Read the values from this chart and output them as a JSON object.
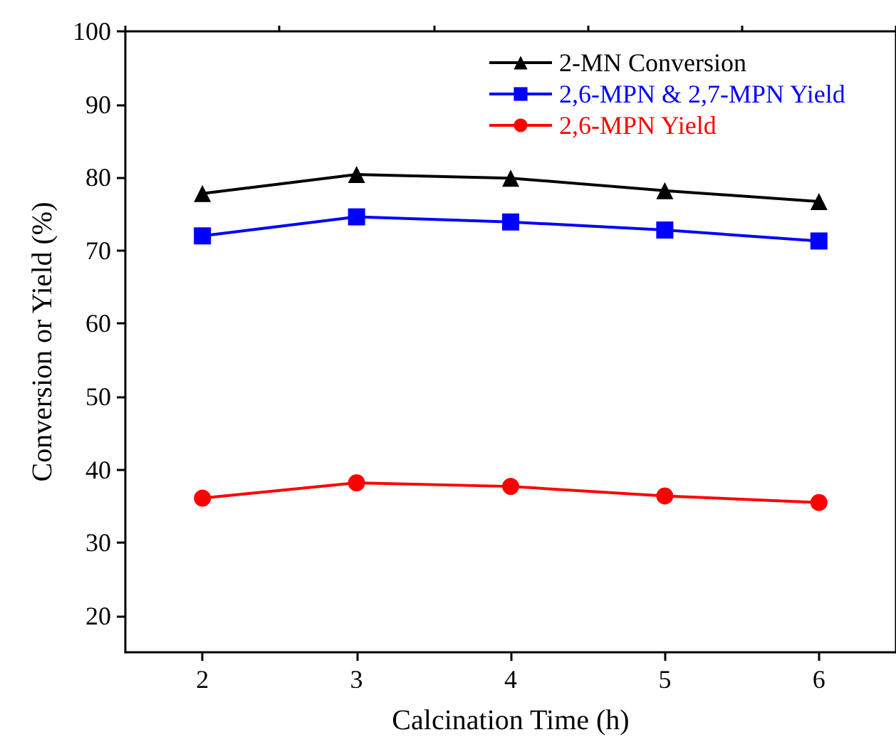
{
  "chart_data": {
    "type": "line",
    "xlabel": "Calcination Time (h)",
    "ylabel": "Conversion or Yield (%)",
    "x": [
      2,
      3,
      4,
      5,
      6
    ],
    "xlim": [
      1.5,
      6.5
    ],
    "xticks": [
      2,
      3,
      4,
      5,
      6
    ],
    "ylim": [
      15,
      100
    ],
    "yticks": [
      20,
      30,
      40,
      50,
      60,
      70,
      80,
      90,
      100
    ],
    "grid": false,
    "legend": "top right",
    "series": [
      {
        "name": "2-MN Conversion",
        "color": "#000000",
        "marker": "triangle",
        "values": [
          77.8,
          80.4,
          79.9,
          78.2,
          76.7
        ]
      },
      {
        "name": "2,6-MPN & 2,7-MPN Yield",
        "color": "#0000ff",
        "marker": "square",
        "values": [
          72.0,
          74.6,
          73.9,
          72.8,
          71.3
        ]
      },
      {
        "name": "2,6-MPN Yield",
        "color": "#ff0000",
        "marker": "circle",
        "values": [
          36.1,
          38.2,
          37.7,
          36.4,
          35.5
        ]
      }
    ]
  }
}
